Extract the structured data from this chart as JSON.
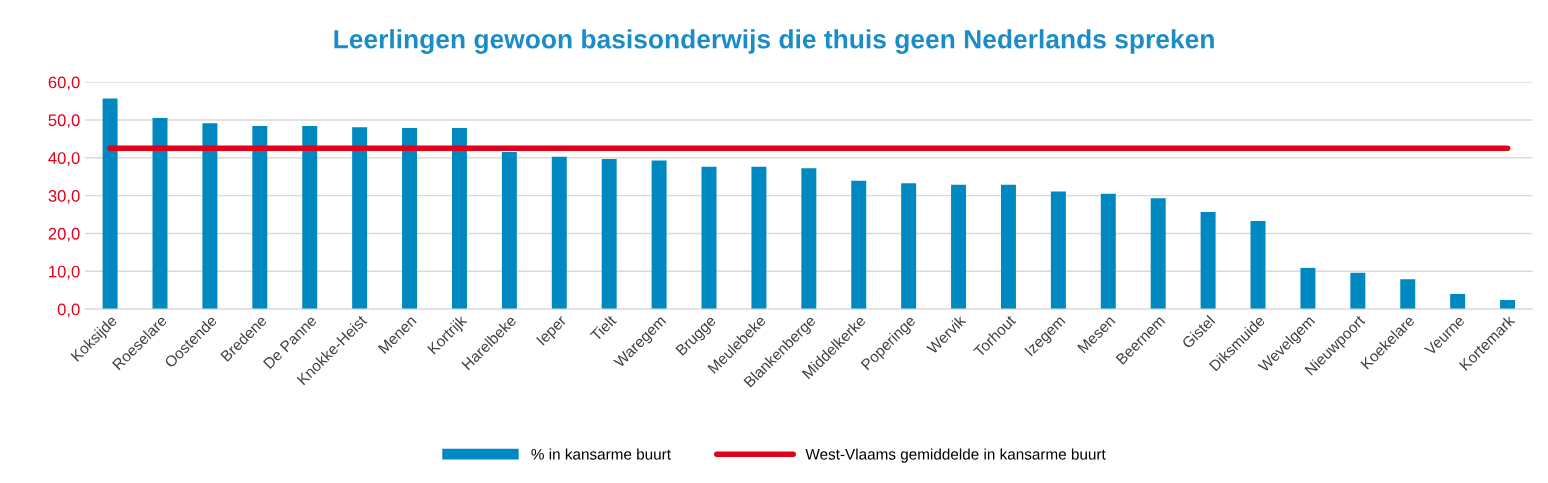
{
  "chart_data": {
    "type": "bar",
    "title": "Leerlingen gewoon basisonderwijs die thuis geen Nederlands spreken",
    "categories": [
      "Koksijde",
      "Roeselare",
      "Oostende",
      "Bredene",
      "De Panne",
      "Knokke-Heist",
      "Menen",
      "Kortrijk",
      "Harelbeke",
      "Ieper",
      "Tielt",
      "Waregem",
      "Brugge",
      "Meulebeke",
      "Blankenberge",
      "Middelkerke",
      "Poperinge",
      "Wervik",
      "Torhout",
      "Izegem",
      "Mesen",
      "Beernem",
      "Gistel",
      "Diksmuide",
      "Wevelgem",
      "Nieuwpoort",
      "Koekelare",
      "Veurne",
      "Kortemark"
    ],
    "series": [
      {
        "name": "% in kansarme buurt",
        "color": "#0088c0",
        "values": [
          55.7,
          50.5,
          49.1,
          48.4,
          48.4,
          48.1,
          47.9,
          47.9,
          41.5,
          40.3,
          39.7,
          39.3,
          37.6,
          37.6,
          37.2,
          33.9,
          33.3,
          32.9,
          32.9,
          31.1,
          30.5,
          29.3,
          25.7,
          23.3,
          10.9,
          9.6,
          7.9,
          4.0,
          2.4
        ]
      },
      {
        "name": "West-Vlaams gemiddelde in kansarme buurt",
        "type": "line",
        "color": "#e2001a",
        "values": [
          42.5,
          42.5,
          42.5,
          42.5,
          42.5,
          42.5,
          42.5,
          42.5,
          42.5,
          42.5,
          42.5,
          42.5,
          42.5,
          42.5,
          42.5,
          42.5,
          42.5,
          42.5,
          42.5,
          42.5,
          42.5,
          42.5,
          42.5,
          42.5,
          42.5,
          42.5,
          42.5,
          42.5,
          42.5
        ]
      }
    ],
    "ylim": [
      0,
      60
    ],
    "yticks": [
      {
        "value": 0,
        "label": "0,0"
      },
      {
        "value": 10,
        "label": "10,0"
      },
      {
        "value": 20,
        "label": "20,0"
      },
      {
        "value": 30,
        "label": "30,0"
      },
      {
        "value": 40,
        "label": "40,0"
      },
      {
        "value": 50,
        "label": "50,0"
      },
      {
        "value": 60,
        "label": "60,0"
      }
    ],
    "grid": "y",
    "legend": "bottom"
  }
}
